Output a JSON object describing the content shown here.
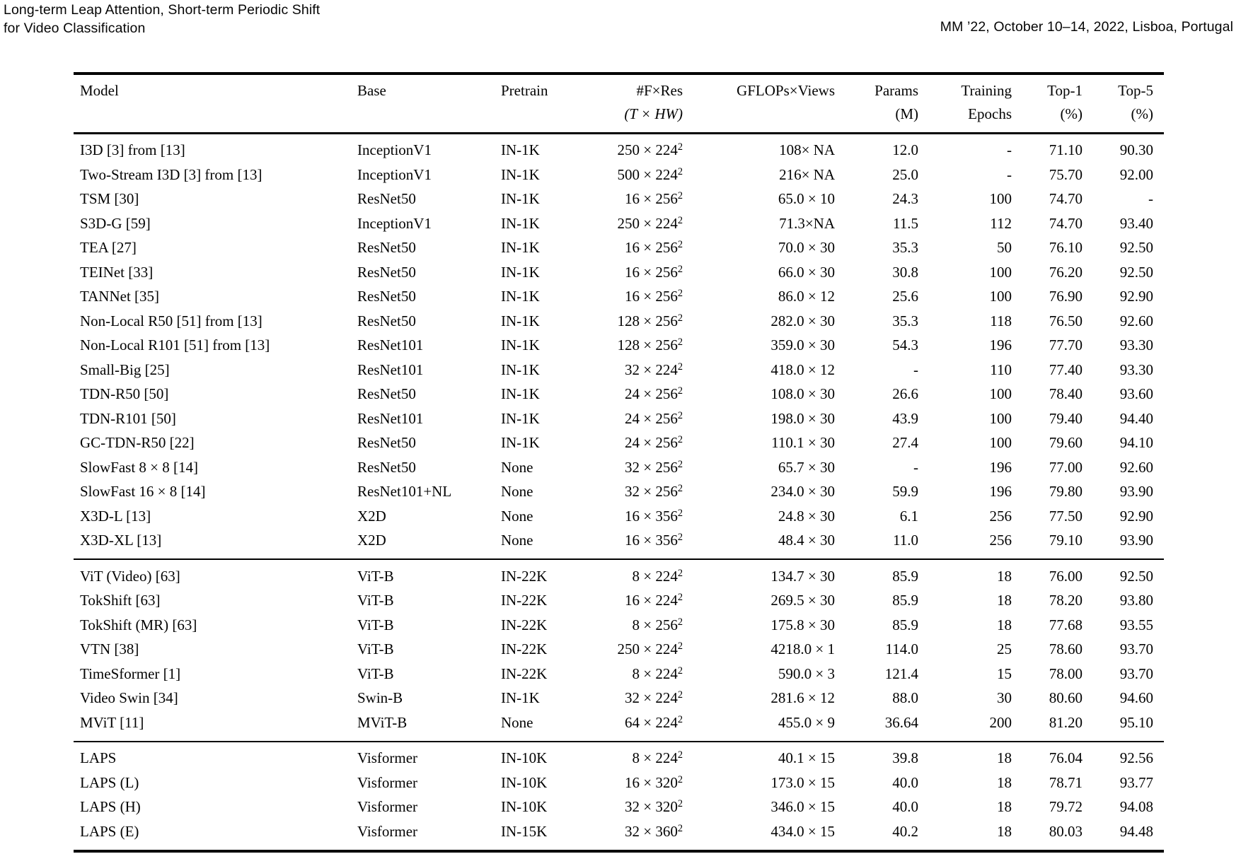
{
  "page_header": {
    "title_line1": "Long-term Leap Attention, Short-term Periodic Shift",
    "title_line2": "for Video Classification",
    "conference": "MM ’22, October 10–14, 2022, Lisboa, Portugal"
  },
  "table": {
    "columns": [
      {
        "id": "model",
        "label": "Model",
        "sub": "",
        "align": "left"
      },
      {
        "id": "base",
        "label": "Base",
        "sub": "",
        "align": "left"
      },
      {
        "id": "pretrain",
        "label": "Pretrain",
        "sub": "",
        "align": "left"
      },
      {
        "id": "fres",
        "label": "#F×Res",
        "sub": "(T × HW)",
        "align": "right",
        "sub_italic": true
      },
      {
        "id": "gflops",
        "label": "GFLOPs×Views",
        "sub": "",
        "align": "right"
      },
      {
        "id": "params",
        "label": "Params",
        "sub": "(M)",
        "align": "right"
      },
      {
        "id": "epochs",
        "label": "Training",
        "sub": "Epochs",
        "align": "right"
      },
      {
        "id": "top1",
        "label": "Top-1",
        "sub": "(%)",
        "align": "right"
      },
      {
        "id": "top5",
        "label": "Top-5",
        "sub": "(%)",
        "align": "right"
      }
    ],
    "groups": [
      {
        "name": "cnn-models",
        "rows": [
          [
            "I3D [3] from [13]",
            "InceptionV1",
            "IN-1K",
            "250 × 224²",
            "108× NA",
            "12.0",
            "-",
            "71.10",
            "90.30"
          ],
          [
            "Two-Stream I3D [3] from [13]",
            "InceptionV1",
            "IN-1K",
            "500 × 224²",
            "216× NA",
            "25.0",
            "-",
            "75.70",
            "92.00"
          ],
          [
            "TSM [30]",
            "ResNet50",
            "IN-1K",
            "16 × 256²",
            "65.0 × 10",
            "24.3",
            "100",
            "74.70",
            "-"
          ],
          [
            "S3D-G [59]",
            "InceptionV1",
            "IN-1K",
            "250 × 224²",
            "71.3×NA",
            "11.5",
            "112",
            "74.70",
            "93.40"
          ],
          [
            "TEA [27]",
            "ResNet50",
            "IN-1K",
            "16 × 256²",
            "70.0 × 30",
            "35.3",
            "50",
            "76.10",
            "92.50"
          ],
          [
            "TEINet [33]",
            "ResNet50",
            "IN-1K",
            "16 × 256²",
            "66.0 × 30",
            "30.8",
            "100",
            "76.20",
            "92.50"
          ],
          [
            "TANNet [35]",
            "ResNet50",
            "IN-1K",
            "16 × 256²",
            "86.0 × 12",
            "25.6",
            "100",
            "76.90",
            "92.90"
          ],
          [
            "Non-Local R50 [51] from [13]",
            "ResNet50",
            "IN-1K",
            "128 × 256²",
            "282.0 × 30",
            "35.3",
            "118",
            "76.50",
            "92.60"
          ],
          [
            "Non-Local R101 [51] from [13]",
            "ResNet101",
            "IN-1K",
            "128 × 256²",
            "359.0 × 30",
            "54.3",
            "196",
            "77.70",
            "93.30"
          ],
          [
            "Small-Big [25]",
            "ResNet101",
            "IN-1K",
            "32 × 224²",
            "418.0 × 12",
            "-",
            "110",
            "77.40",
            "93.30"
          ],
          [
            "TDN-R50 [50]",
            "ResNet50",
            "IN-1K",
            "24 × 256²",
            "108.0 × 30",
            "26.6",
            "100",
            "78.40",
            "93.60"
          ],
          [
            "TDN-R101 [50]",
            "ResNet101",
            "IN-1K",
            "24 × 256²",
            "198.0 × 30",
            "43.9",
            "100",
            "79.40",
            "94.40"
          ],
          [
            "GC-TDN-R50 [22]",
            "ResNet50",
            "IN-1K",
            "24 × 256²",
            "110.1 × 30",
            "27.4",
            "100",
            "79.60",
            "94.10"
          ],
          [
            "SlowFast 8 × 8 [14]",
            "ResNet50",
            "None",
            "32 × 256²",
            "65.7 × 30",
            "-",
            "196",
            "77.00",
            "92.60"
          ],
          [
            "SlowFast 16 × 8 [14]",
            "ResNet101+NL",
            "None",
            "32 × 256²",
            "234.0 × 30",
            "59.9",
            "196",
            "79.80",
            "93.90"
          ],
          [
            "X3D-L [13]",
            "X2D",
            "None",
            "16 × 356²",
            "24.8 × 30",
            "6.1",
            "256",
            "77.50",
            "92.90"
          ],
          [
            "X3D-XL [13]",
            "X2D",
            "None",
            "16 × 356²",
            "48.4 × 30",
            "11.0",
            "256",
            "79.10",
            "93.90"
          ]
        ]
      },
      {
        "name": "transformer-models",
        "rows": [
          [
            "ViT (Video) [63]",
            "ViT-B",
            "IN-22K",
            "8 × 224²",
            "134.7 × 30",
            "85.9",
            "18",
            "76.00",
            "92.50"
          ],
          [
            "TokShift [63]",
            "ViT-B",
            "IN-22K",
            "16 × 224²",
            "269.5 × 30",
            "85.9",
            "18",
            "78.20",
            "93.80"
          ],
          [
            "TokShift (MR) [63]",
            "ViT-B",
            "IN-22K",
            "8 × 256²",
            "175.8 × 30",
            "85.9",
            "18",
            "77.68",
            "93.55"
          ],
          [
            "VTN [38]",
            "ViT-B",
            "IN-22K",
            "250 × 224²",
            "4218.0 × 1",
            "114.0",
            "25",
            "78.60",
            "93.70"
          ],
          [
            "TimeSformer [1]",
            "ViT-B",
            "IN-22K",
            "8 × 224²",
            "590.0 × 3",
            "121.4",
            "15",
            "78.00",
            "93.70"
          ],
          [
            "Video Swin [34]",
            "Swin-B",
            "IN-1K",
            "32 × 224²",
            "281.6 × 12",
            "88.0",
            "30",
            "80.60",
            "94.60"
          ],
          [
            "MViT [11]",
            "MViT-B",
            "None",
            "64 × 224²",
            "455.0 × 9",
            "36.64",
            "200",
            "81.20",
            "95.10"
          ]
        ]
      },
      {
        "name": "laps-models",
        "rows": [
          [
            "LAPS",
            "Visformer",
            "IN-10K",
            "8 × 224²",
            "40.1 × 15",
            "39.8",
            "18",
            "76.04",
            "92.56"
          ],
          [
            "LAPS (L)",
            "Visformer",
            "IN-10K",
            "16 × 320²",
            "173.0 × 15",
            "40.0",
            "18",
            "78.71",
            "93.77"
          ],
          [
            "LAPS (H)",
            "Visformer",
            "IN-10K",
            "32 × 320²",
            "346.0 × 15",
            "40.0",
            "18",
            "79.72",
            "94.08"
          ],
          [
            "LAPS (E)",
            "Visformer",
            "IN-15K",
            "32 × 360²",
            "434.0 × 15",
            "40.2",
            "18",
            "80.03",
            "94.48"
          ]
        ]
      }
    ]
  }
}
